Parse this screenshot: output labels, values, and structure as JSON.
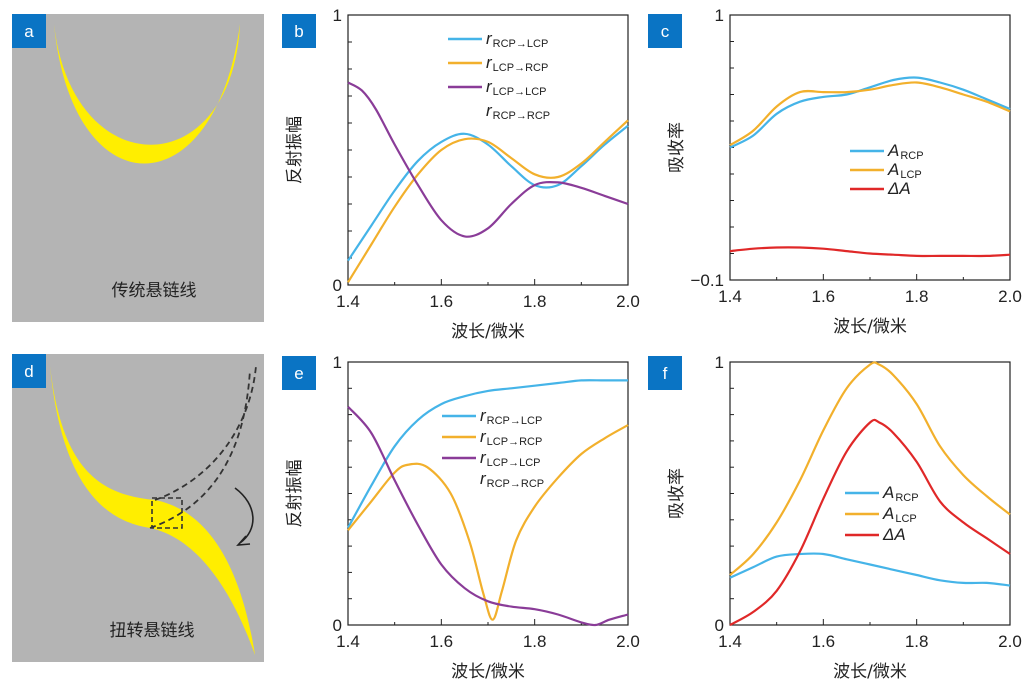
{
  "colors": {
    "accent_label_bg": "#0a74c4",
    "panel_gray": "#b4b4b4",
    "yellow": "#ffee00",
    "blue": "#45b4e8",
    "orange": "#f2b02c",
    "purple": "#8a3c98",
    "red": "#e02828"
  },
  "diagram_a": {
    "label": "a",
    "caption": "传统悬链线"
  },
  "diagram_d": {
    "label": "d",
    "caption": "扭转悬链线"
  },
  "chart_data": [
    {
      "id": "b",
      "label": "b",
      "type": "line",
      "ylabel": "反射振幅",
      "xlabel": "波长/微米",
      "xlim": [
        1.4,
        2.0
      ],
      "ylim": [
        0,
        1
      ],
      "xticks": [
        "1.4",
        "1.6",
        "1.8",
        "2.0"
      ],
      "yticks": [
        "0",
        "1"
      ],
      "series": [
        {
          "name": "r",
          "sub": "RCP→LCP",
          "color": "#45b4e8",
          "x": [
            1.4,
            1.45,
            1.5,
            1.55,
            1.6,
            1.65,
            1.7,
            1.75,
            1.8,
            1.85,
            1.9,
            1.95,
            2.0
          ],
          "y": [
            0.09,
            0.22,
            0.35,
            0.46,
            0.53,
            0.56,
            0.52,
            0.44,
            0.37,
            0.37,
            0.44,
            0.52,
            0.59
          ]
        },
        {
          "name": "r",
          "sub": "LCP→RCP",
          "color": "#f2b02c",
          "x": [
            1.4,
            1.45,
            1.5,
            1.55,
            1.6,
            1.65,
            1.7,
            1.75,
            1.8,
            1.85,
            1.9,
            1.95,
            2.0
          ],
          "y": [
            0.01,
            0.15,
            0.29,
            0.41,
            0.5,
            0.54,
            0.53,
            0.47,
            0.41,
            0.4,
            0.45,
            0.53,
            0.61
          ]
        },
        {
          "name": "r",
          "sub": "LCP→LCP",
          "color": "#8a3c98",
          "x": [
            1.4,
            1.43,
            1.46,
            1.5,
            1.55,
            1.6,
            1.65,
            1.7,
            1.75,
            1.8,
            1.85,
            1.9,
            1.95,
            2.0
          ],
          "y": [
            0.75,
            0.72,
            0.65,
            0.52,
            0.37,
            0.24,
            0.18,
            0.21,
            0.3,
            0.37,
            0.38,
            0.36,
            0.33,
            0.3
          ]
        },
        {
          "name": "r",
          "sub": "RCP→RCP",
          "color": null,
          "x": [],
          "y": []
        }
      ],
      "legend_position": "top-center"
    },
    {
      "id": "c",
      "label": "c",
      "type": "line",
      "ylabel": "吸收率",
      "xlabel": "波长/微米",
      "xlim": [
        1.4,
        2.0
      ],
      "ylim": [
        -0.1,
        1
      ],
      "xticks": [
        "1.4",
        "1.6",
        "1.8",
        "2.0"
      ],
      "yticks": [
        "−0.1",
        "1"
      ],
      "series": [
        {
          "name": "A",
          "sub": "RCP",
          "color": "#45b4e8",
          "x": [
            1.4,
            1.45,
            1.5,
            1.55,
            1.6,
            1.65,
            1.7,
            1.75,
            1.8,
            1.85,
            1.9,
            1.95,
            2.0
          ],
          "y": [
            0.45,
            0.5,
            0.59,
            0.64,
            0.66,
            0.67,
            0.7,
            0.73,
            0.74,
            0.72,
            0.69,
            0.65,
            0.61
          ]
        },
        {
          "name": "A",
          "sub": "LCP",
          "color": "#f2b02c",
          "x": [
            1.4,
            1.45,
            1.5,
            1.55,
            1.6,
            1.65,
            1.7,
            1.75,
            1.8,
            1.85,
            1.9,
            1.95,
            2.0
          ],
          "y": [
            0.46,
            0.52,
            0.62,
            0.68,
            0.68,
            0.68,
            0.69,
            0.71,
            0.72,
            0.7,
            0.67,
            0.64,
            0.6
          ]
        },
        {
          "name": "ΔA",
          "sub": "",
          "color": "#e02828",
          "x": [
            1.4,
            1.45,
            1.5,
            1.55,
            1.6,
            1.65,
            1.7,
            1.75,
            1.8,
            1.85,
            1.9,
            1.95,
            2.0
          ],
          "y": [
            0.02,
            0.03,
            0.035,
            0.035,
            0.03,
            0.02,
            0.01,
            0.005,
            0.0,
            0.0,
            0.0,
            0.0,
            0.005
          ]
        }
      ],
      "legend_position": "center-right"
    },
    {
      "id": "e",
      "label": "e",
      "type": "line",
      "ylabel": "反射振幅",
      "xlabel": "波长/微米",
      "xlim": [
        1.4,
        2.0
      ],
      "ylim": [
        0,
        1
      ],
      "xticks": [
        "1.4",
        "1.6",
        "1.8",
        "2.0"
      ],
      "yticks": [
        "0",
        "1"
      ],
      "series": [
        {
          "name": "r",
          "sub": "RCP→LCP",
          "color": "#45b4e8",
          "x": [
            1.4,
            1.45,
            1.5,
            1.55,
            1.6,
            1.65,
            1.7,
            1.75,
            1.8,
            1.85,
            1.9,
            1.95,
            2.0
          ],
          "y": [
            0.37,
            0.53,
            0.68,
            0.78,
            0.84,
            0.87,
            0.89,
            0.9,
            0.91,
            0.92,
            0.93,
            0.93,
            0.93
          ]
        },
        {
          "name": "r",
          "sub": "LCP→RCP",
          "color": "#f2b02c",
          "x": [
            1.4,
            1.45,
            1.5,
            1.53,
            1.57,
            1.62,
            1.66,
            1.69,
            1.71,
            1.73,
            1.76,
            1.8,
            1.85,
            1.9,
            1.95,
            2.0
          ],
          "y": [
            0.36,
            0.47,
            0.58,
            0.61,
            0.6,
            0.5,
            0.32,
            0.12,
            0.02,
            0.13,
            0.32,
            0.45,
            0.56,
            0.65,
            0.71,
            0.76
          ]
        },
        {
          "name": "r",
          "sub": "LCP→LCP",
          "color": "#8a3c98",
          "x": [
            1.4,
            1.45,
            1.5,
            1.55,
            1.6,
            1.65,
            1.7,
            1.75,
            1.8,
            1.85,
            1.9,
            1.93,
            1.96,
            2.0
          ],
          "y": [
            0.83,
            0.73,
            0.55,
            0.38,
            0.23,
            0.14,
            0.09,
            0.07,
            0.06,
            0.04,
            0.01,
            0.0,
            0.02,
            0.04
          ]
        },
        {
          "name": "r",
          "sub": "RCP→RCP",
          "color": null,
          "x": [],
          "y": []
        }
      ],
      "legend_position": "center-right"
    },
    {
      "id": "f",
      "label": "f",
      "type": "line",
      "ylabel": "吸收率",
      "xlabel": "波长/微米",
      "xlim": [
        1.4,
        2.0
      ],
      "ylim": [
        0,
        1
      ],
      "xticks": [
        "1.4",
        "1.6",
        "1.8",
        "2.0"
      ],
      "yticks": [
        "0",
        "1"
      ],
      "series": [
        {
          "name": "A",
          "sub": "RCP",
          "color": "#45b4e8",
          "x": [
            1.4,
            1.45,
            1.5,
            1.55,
            1.6,
            1.65,
            1.7,
            1.75,
            1.8,
            1.85,
            1.9,
            1.95,
            2.0
          ],
          "y": [
            0.18,
            0.22,
            0.26,
            0.27,
            0.27,
            0.25,
            0.23,
            0.21,
            0.19,
            0.17,
            0.16,
            0.16,
            0.15
          ]
        },
        {
          "name": "A",
          "sub": "LCP",
          "color": "#f2b02c",
          "x": [
            1.4,
            1.45,
            1.5,
            1.55,
            1.6,
            1.65,
            1.7,
            1.72,
            1.75,
            1.8,
            1.85,
            1.9,
            1.95,
            2.0
          ],
          "y": [
            0.19,
            0.27,
            0.39,
            0.55,
            0.74,
            0.9,
            0.99,
            0.99,
            0.95,
            0.84,
            0.68,
            0.57,
            0.49,
            0.42
          ]
        },
        {
          "name": "ΔA",
          "sub": "",
          "color": "#e02828",
          "x": [
            1.4,
            1.45,
            1.5,
            1.55,
            1.6,
            1.65,
            1.7,
            1.72,
            1.75,
            1.8,
            1.85,
            1.9,
            1.95,
            2.0
          ],
          "y": [
            0.0,
            0.05,
            0.13,
            0.28,
            0.48,
            0.66,
            0.77,
            0.77,
            0.73,
            0.62,
            0.47,
            0.39,
            0.33,
            0.27
          ]
        }
      ],
      "legend_position": "center-right"
    }
  ]
}
